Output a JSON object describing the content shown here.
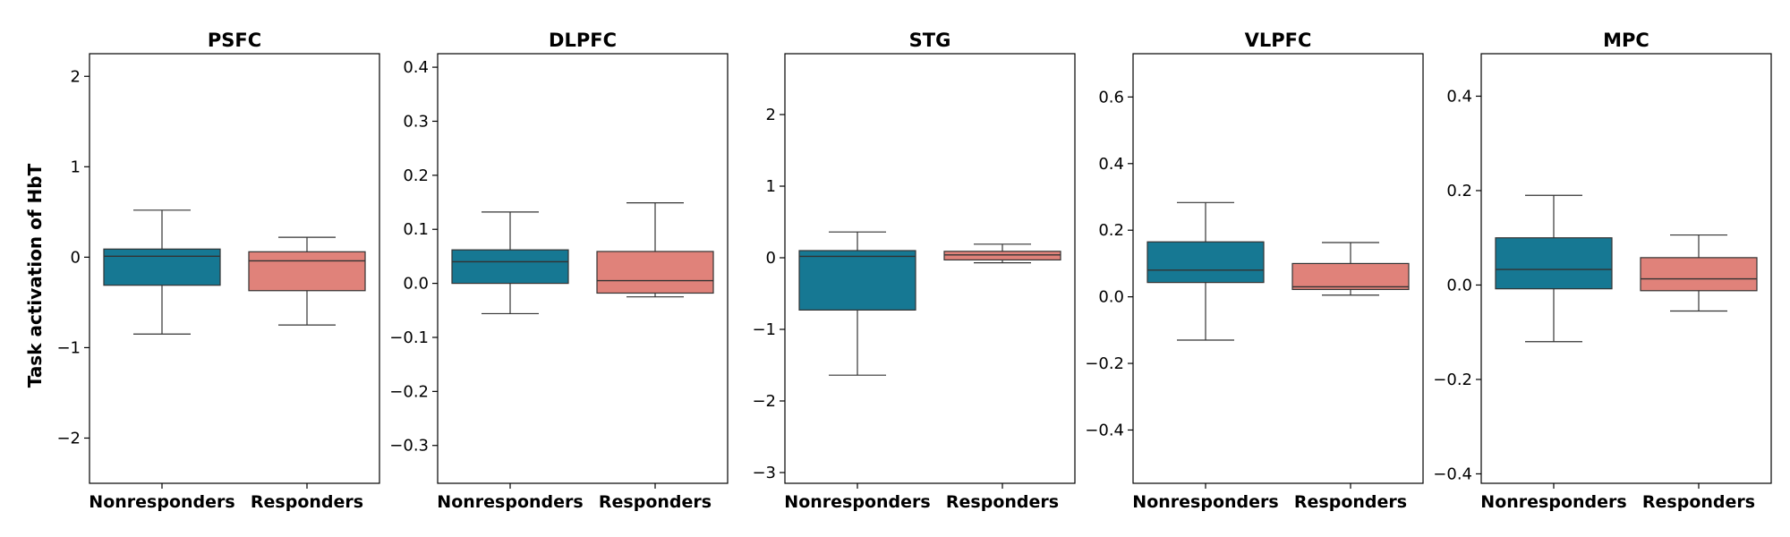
{
  "chart_data": {
    "type": "box",
    "ylabel": "Task activation of HbT",
    "categories": [
      "Nonresponders",
      "Responders"
    ],
    "colors": {
      "Nonresponders": "#167893",
      "Responders": "#e0827a",
      "line": "#333333"
    },
    "grid": false,
    "legend": "none",
    "panels": [
      {
        "title": "PSFC",
        "ylim": [
          -2.5,
          2.25
        ],
        "yticks": [
          -2,
          -1,
          0,
          1,
          2
        ],
        "tick_labels": [
          "−2",
          "−1",
          "0",
          "1",
          "2"
        ],
        "boxes": [
          {
            "group": "Nonresponders",
            "whislo": -0.85,
            "q1": -0.31,
            "med": 0.01,
            "q3": 0.09,
            "whishi": 0.52
          },
          {
            "group": "Responders",
            "whislo": -0.75,
            "q1": -0.37,
            "med": -0.04,
            "q3": 0.06,
            "whishi": 0.22
          }
        ]
      },
      {
        "title": "DLPFC",
        "ylim": [
          -0.37,
          0.425
        ],
        "yticks": [
          -0.3,
          -0.2,
          -0.1,
          0.0,
          0.1,
          0.2,
          0.3,
          0.4
        ],
        "tick_labels": [
          "−0.3",
          "−0.2",
          "−0.1",
          "0.0",
          "0.1",
          "0.2",
          "0.3",
          "0.4"
        ],
        "boxes": [
          {
            "group": "Nonresponders",
            "whislo": -0.056,
            "q1": 0.0,
            "med": 0.04,
            "q3": 0.062,
            "whishi": 0.132
          },
          {
            "group": "Responders",
            "whislo": -0.025,
            "q1": -0.018,
            "med": 0.005,
            "q3": 0.059,
            "whishi": 0.149
          }
        ]
      },
      {
        "title": "STG",
        "ylim": [
          -3.15,
          2.85
        ],
        "yticks": [
          -3,
          -2,
          -1,
          0,
          1,
          2
        ],
        "tick_labels": [
          "−3",
          "−2",
          "−1",
          "0",
          "1",
          "2"
        ],
        "boxes": [
          {
            "group": "Nonresponders",
            "whislo": -1.64,
            "q1": -0.73,
            "med": 0.02,
            "q3": 0.1,
            "whishi": 0.36
          },
          {
            "group": "Responders",
            "whislo": -0.07,
            "q1": -0.03,
            "med": 0.04,
            "q3": 0.09,
            "whishi": 0.19
          }
        ]
      },
      {
        "title": "VLPFC",
        "ylim": [
          -0.56,
          0.73
        ],
        "yticks": [
          -0.4,
          -0.2,
          0.0,
          0.2,
          0.4,
          0.6
        ],
        "tick_labels": [
          "−0.4",
          "−0.2",
          "0.0",
          "0.2",
          "0.4",
          "0.6"
        ],
        "boxes": [
          {
            "group": "Nonresponders",
            "whislo": -0.13,
            "q1": 0.043,
            "med": 0.08,
            "q3": 0.165,
            "whishi": 0.283
          },
          {
            "group": "Responders",
            "whislo": 0.005,
            "q1": 0.022,
            "med": 0.03,
            "q3": 0.1,
            "whishi": 0.163
          }
        ]
      },
      {
        "title": "MPC",
        "ylim": [
          -0.42,
          0.49
        ],
        "yticks": [
          -0.4,
          -0.2,
          0.0,
          0.2,
          0.4
        ],
        "tick_labels": [
          "−0.4",
          "−0.2",
          "0.0",
          "0.2",
          "0.4"
        ],
        "boxes": [
          {
            "group": "Nonresponders",
            "whislo": -0.12,
            "q1": -0.008,
            "med": 0.033,
            "q3": 0.1,
            "whishi": 0.19
          },
          {
            "group": "Responders",
            "whislo": -0.055,
            "q1": -0.012,
            "med": 0.013,
            "q3": 0.058,
            "whishi": 0.106
          }
        ]
      }
    ]
  }
}
